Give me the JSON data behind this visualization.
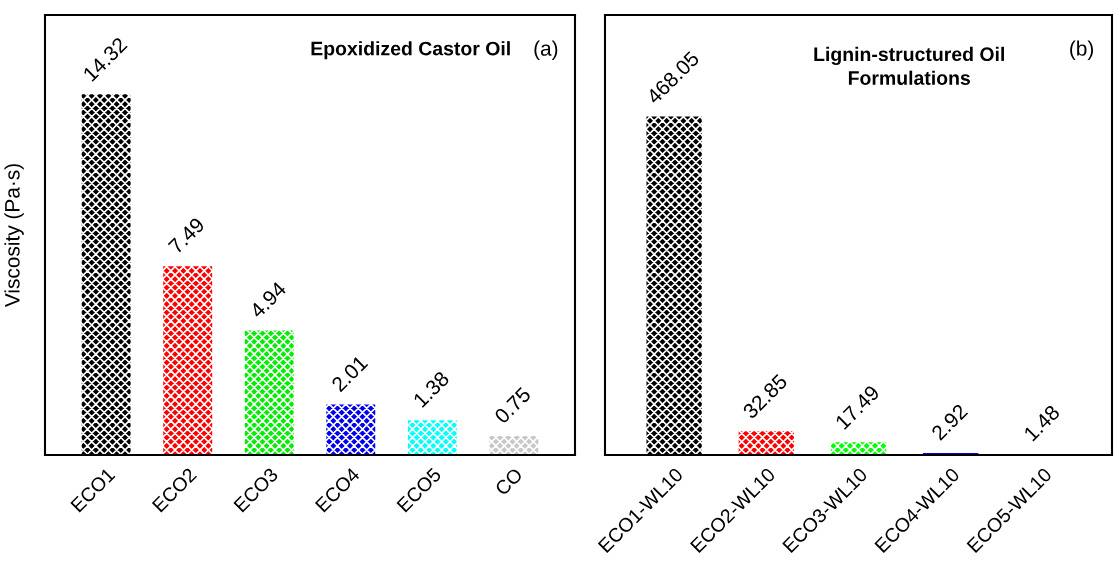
{
  "chart_data": [
    {
      "type": "bar",
      "title": "Epoxidized Castor Oil",
      "ylabel": "Viscosity (Pa·s)",
      "annotations": [
        "(a)"
      ],
      "categories": [
        "ECO1",
        "ECO2",
        "ECO3",
        "ECO4",
        "ECO5",
        "CO"
      ],
      "values": [
        14.32,
        7.49,
        4.94,
        2.01,
        1.38,
        0.75
      ],
      "colors": [
        "#000000",
        "#ff0000",
        "#00ee00",
        "#0000ee",
        "#00ffff",
        "#c8c8c8"
      ],
      "data_labels": true,
      "tick_labels": "x",
      "grid": false,
      "legend": false
    },
    {
      "type": "bar",
      "title": "Lignin-structured Oil\nFormulations",
      "annotations": [
        "(b)"
      ],
      "categories": [
        "ECO1-WL10",
        "ECO2-WL10",
        "ECO3-WL10",
        "ECO4-WL10",
        "ECO5-WL10"
      ],
      "values": [
        468.05,
        32.85,
        17.49,
        2.92,
        1.48
      ],
      "colors": [
        "#000000",
        "#ff0000",
        "#00ff00",
        "#0000ee",
        "#22eebb"
      ],
      "data_labels": true,
      "tick_labels": "x",
      "grid": false,
      "legend": false
    }
  ]
}
